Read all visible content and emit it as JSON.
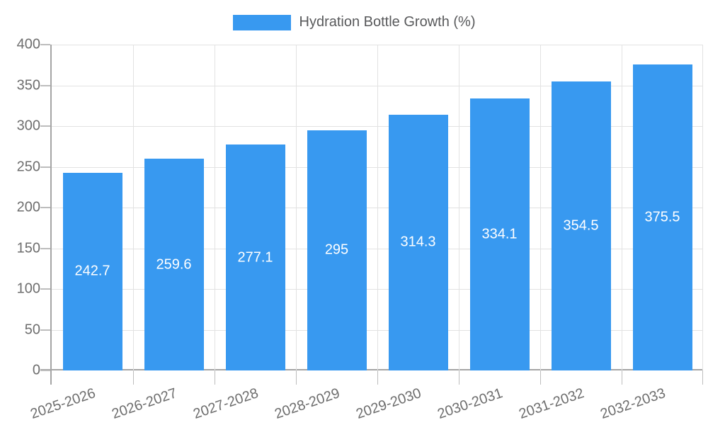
{
  "chart_data": {
    "type": "bar",
    "title": "Hydration Bottle Growth (%)",
    "legend_position": "top",
    "legend": [
      {
        "label": "Hydration Bottle Growth (%)",
        "color": "#3899F0"
      }
    ],
    "categories": [
      "2025-2026",
      "2026-2027",
      "2027-2028",
      "2028-2029",
      "2029-2030",
      "2030-2031",
      "2031-2032",
      "2032-2033"
    ],
    "values": [
      242.7,
      259.6,
      277.1,
      295,
      314.3,
      334.1,
      354.5,
      375.5
    ],
    "value_labels": [
      "242.7",
      "259.6",
      "277.1",
      "295",
      "314.3",
      "334.1",
      "354.5",
      "375.5"
    ],
    "xlabel": "",
    "ylabel": "",
    "ylim": [
      0,
      400
    ],
    "yticks": [
      0,
      50,
      100,
      150,
      200,
      250,
      300,
      350,
      400
    ],
    "grid": true,
    "colors": {
      "bar": "#3899F0",
      "value_label": "#FFFFFF",
      "axis_line": "#A5A5A5",
      "gridline": "#E2E2E2",
      "tick_mark": "#BDBDBD",
      "tick_label": "#6E6E6E",
      "legend_text": "#58595B",
      "background": "#FFFFFF"
    }
  }
}
